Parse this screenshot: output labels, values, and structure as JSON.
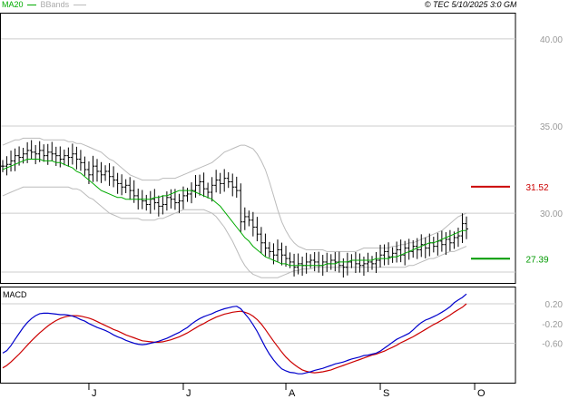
{
  "header": {
    "ma_label": "MA20",
    "bb_label": "BBands",
    "copyright": "© TEC 5/10/2025 3:0 GMT"
  },
  "colors": {
    "ma": "#00aa00",
    "bbands": "#bbbbbb",
    "macd_line": "#0000cc",
    "signal_line": "#cc0000",
    "resistance": "#cc0000",
    "support": "#009900",
    "grid": "#cccccc",
    "price_bar": "#000000"
  },
  "chart_data": [
    {
      "type": "line",
      "panel": "price",
      "ylim": [
        26.0,
        41.5
      ],
      "y_ticks": [
        {
          "value": 40,
          "label": "40.00"
        },
        {
          "value": 35,
          "label": "35.00"
        },
        {
          "value": 30,
          "label": "30.00"
        }
      ],
      "x_labels": [
        "J",
        "J",
        "A",
        "S",
        "O"
      ],
      "x_label_index": [
        21,
        44,
        69,
        92,
        115
      ],
      "levels": [
        {
          "name": "resistance",
          "value": 31.52,
          "label": "31.52"
        },
        {
          "name": "support",
          "value": 27.39,
          "label": "27.39"
        }
      ],
      "price_close": [
        32.7,
        32.8,
        33.0,
        33.3,
        33.2,
        33.4,
        33.6,
        33.5,
        33.4,
        33.6,
        33.3,
        33.5,
        33.4,
        33.3,
        33.1,
        33.3,
        33.2,
        33.4,
        33.1,
        32.9,
        32.5,
        32.2,
        32.7,
        32.4,
        32.2,
        32.4,
        32.1,
        31.9,
        31.7,
        31.5,
        31.6,
        31.3,
        31.0,
        30.8,
        30.7,
        30.5,
        30.8,
        30.6,
        30.4,
        30.5,
        30.9,
        30.8,
        30.6,
        30.7,
        31.0,
        31.1,
        31.3,
        31.6,
        31.8,
        31.4,
        31.2,
        31.6,
        31.9,
        31.7,
        32.0,
        31.8,
        31.5,
        31.3,
        29.5,
        29.8,
        29.6,
        29.2,
        28.8,
        28.3,
        28.0,
        27.8,
        27.6,
        27.9,
        27.6,
        27.4,
        27.2,
        26.9,
        27.1,
        27.0,
        27.2,
        27.3,
        27.2,
        27.0,
        27.2,
        27.1,
        27.3,
        27.2,
        27.0,
        26.9,
        27.2,
        27.3,
        27.1,
        27.0,
        27.1,
        27.2,
        27.1,
        27.3,
        27.6,
        27.8,
        27.5,
        27.7,
        27.9,
        27.6,
        28.0,
        27.8,
        28.1,
        27.9,
        28.2,
        28.0,
        28.3,
        28.1,
        28.4,
        28.2,
        28.5,
        28.3,
        28.6,
        28.7,
        29.4,
        29.1
      ],
      "ma20": [
        32.5,
        32.6,
        32.7,
        32.8,
        32.9,
        33.0,
        33.1,
        33.1,
        33.1,
        33.1,
        33.0,
        33.0,
        33.0,
        32.9,
        32.9,
        32.8,
        32.7,
        32.6,
        32.4,
        32.3,
        32.1,
        31.9,
        31.7,
        31.5,
        31.3,
        31.2,
        31.1,
        31.0,
        30.9,
        30.9,
        30.8,
        30.8,
        30.8,
        30.8,
        30.8,
        30.8,
        30.8,
        30.9,
        30.9,
        31.0,
        31.0,
        31.1,
        31.2,
        31.3,
        31.3,
        31.3,
        31.3,
        31.2,
        31.1,
        31.0,
        30.9,
        30.8,
        30.6,
        30.4,
        30.1,
        29.8,
        29.5,
        29.2,
        28.9,
        28.6,
        28.4,
        28.1,
        27.9,
        27.7,
        27.5,
        27.4,
        27.3,
        27.2,
        27.1,
        27.1,
        27.0,
        27.0,
        27.0,
        27.0,
        27.0,
        27.0,
        27.0,
        27.0,
        27.0,
        27.1,
        27.1,
        27.1,
        27.2,
        27.2,
        27.2,
        27.3,
        27.3,
        27.3,
        27.3,
        27.3,
        27.3,
        27.4,
        27.4,
        27.4,
        27.4,
        27.5,
        27.5,
        27.6,
        27.7,
        27.8,
        27.9,
        28.0,
        28.1,
        28.2,
        28.3,
        28.3,
        28.4,
        28.5,
        28.6,
        28.7,
        28.8,
        28.9,
        29.0,
        29.0
      ],
      "bb_upper": [
        33.9,
        34.0,
        34.1,
        34.2,
        34.2,
        34.3,
        34.3,
        34.3,
        34.3,
        34.3,
        34.2,
        34.2,
        34.2,
        34.2,
        34.2,
        34.2,
        34.1,
        34.1,
        34.0,
        34.0,
        33.9,
        33.8,
        33.7,
        33.6,
        33.5,
        33.3,
        33.1,
        33.0,
        32.8,
        32.6,
        32.4,
        32.2,
        32.1,
        32.0,
        31.9,
        31.9,
        31.9,
        31.9,
        31.9,
        32.0,
        32.0,
        32.0,
        32.0,
        32.1,
        32.2,
        32.3,
        32.4,
        32.5,
        32.6,
        32.7,
        32.8,
        32.9,
        33.1,
        33.3,
        33.5,
        33.6,
        33.7,
        33.8,
        33.9,
        33.9,
        33.8,
        33.7,
        33.4,
        33.0,
        32.5,
        31.8,
        31.0,
        30.2,
        29.5,
        29.0,
        28.6,
        28.3,
        28.1,
        28.0,
        27.9,
        27.9,
        27.9,
        27.9,
        27.9,
        27.8,
        27.8,
        27.8,
        27.8,
        27.8,
        27.8,
        27.8,
        27.8,
        27.9,
        28.0,
        28.0,
        28.0,
        28.0,
        28.0,
        28.0,
        28.0,
        28.1,
        28.1,
        28.2,
        28.2,
        28.3,
        28.3,
        28.4,
        28.5,
        28.6,
        28.7,
        28.8,
        28.9,
        29.0,
        29.2,
        29.4,
        29.6,
        29.8,
        29.9,
        30.0
      ],
      "bb_lower": [
        31.0,
        31.1,
        31.2,
        31.3,
        31.4,
        31.5,
        31.5,
        31.5,
        31.5,
        31.5,
        31.5,
        31.5,
        31.5,
        31.5,
        31.5,
        31.5,
        31.5,
        31.4,
        31.4,
        31.3,
        31.1,
        30.9,
        30.8,
        30.6,
        30.4,
        30.2,
        30.0,
        29.9,
        29.8,
        29.7,
        29.7,
        29.7,
        29.7,
        29.7,
        29.6,
        29.6,
        29.6,
        29.6,
        29.7,
        29.7,
        29.8,
        29.9,
        30.0,
        30.1,
        30.2,
        30.2,
        30.2,
        30.2,
        30.2,
        30.2,
        30.1,
        30.0,
        29.8,
        29.5,
        29.2,
        28.8,
        28.4,
        27.9,
        27.4,
        27.0,
        26.7,
        26.5,
        26.4,
        26.3,
        26.3,
        26.3,
        26.3,
        26.3,
        26.4,
        26.5,
        26.6,
        26.7,
        26.7,
        26.8,
        26.8,
        26.8,
        26.9,
        26.9,
        26.9,
        26.9,
        26.9,
        26.9,
        26.9,
        26.9,
        26.9,
        26.9,
        26.9,
        26.9,
        26.9,
        26.9,
        26.9,
        26.9,
        26.9,
        26.9,
        26.9,
        26.9,
        26.9,
        26.9,
        26.9,
        27.0,
        27.0,
        27.1,
        27.2,
        27.3,
        27.4,
        27.4,
        27.5,
        27.6,
        27.7,
        27.8,
        27.8,
        27.9,
        28.0,
        28.1
      ]
    },
    {
      "type": "line",
      "panel": "macd",
      "title": "MACD",
      "ylim": [
        -1.4,
        0.55
      ],
      "y_ticks": [
        {
          "value": 0.2,
          "label": "0.20"
        },
        {
          "value": -0.2,
          "label": "-0.20"
        },
        {
          "value": -0.6,
          "label": "-0.60"
        }
      ],
      "series": [
        {
          "key": "macd",
          "values": [
            -0.8,
            -0.75,
            -0.65,
            -0.52,
            -0.4,
            -0.28,
            -0.18,
            -0.1,
            -0.04,
            0.0,
            0.01,
            0.01,
            0.0,
            -0.01,
            -0.02,
            -0.02,
            -0.03,
            -0.05,
            -0.08,
            -0.12,
            -0.15,
            -0.2,
            -0.24,
            -0.28,
            -0.31,
            -0.34,
            -0.38,
            -0.43,
            -0.47,
            -0.5,
            -0.54,
            -0.57,
            -0.6,
            -0.62,
            -0.63,
            -0.62,
            -0.6,
            -0.58,
            -0.56,
            -0.53,
            -0.5,
            -0.46,
            -0.42,
            -0.38,
            -0.33,
            -0.28,
            -0.21,
            -0.15,
            -0.1,
            -0.06,
            -0.03,
            0.0,
            0.04,
            0.07,
            0.1,
            0.12,
            0.14,
            0.15,
            0.1,
            0.0,
            -0.1,
            -0.22,
            -0.36,
            -0.52,
            -0.68,
            -0.82,
            -0.94,
            -1.04,
            -1.12,
            -1.16,
            -1.19,
            -1.2,
            -1.22,
            -1.22,
            -1.2,
            -1.18,
            -1.15,
            -1.13,
            -1.11,
            -1.08,
            -1.05,
            -1.02,
            -1.0,
            -0.98,
            -0.95,
            -0.92,
            -0.9,
            -0.88,
            -0.85,
            -0.84,
            -0.82,
            -0.8,
            -0.76,
            -0.7,
            -0.64,
            -0.58,
            -0.52,
            -0.48,
            -0.44,
            -0.4,
            -0.33,
            -0.25,
            -0.18,
            -0.13,
            -0.1,
            -0.06,
            -0.02,
            0.03,
            0.08,
            0.14,
            0.22,
            0.28,
            0.33,
            0.4
          ]
        },
        {
          "key": "signal",
          "values": [
            -1.1,
            -1.05,
            -0.98,
            -0.9,
            -0.82,
            -0.73,
            -0.64,
            -0.55,
            -0.47,
            -0.39,
            -0.32,
            -0.25,
            -0.19,
            -0.14,
            -0.1,
            -0.07,
            -0.05,
            -0.04,
            -0.04,
            -0.05,
            -0.07,
            -0.09,
            -0.12,
            -0.16,
            -0.2,
            -0.24,
            -0.28,
            -0.32,
            -0.35,
            -0.39,
            -0.43,
            -0.46,
            -0.49,
            -0.52,
            -0.55,
            -0.56,
            -0.57,
            -0.58,
            -0.58,
            -0.57,
            -0.55,
            -0.53,
            -0.5,
            -0.47,
            -0.43,
            -0.39,
            -0.34,
            -0.29,
            -0.24,
            -0.2,
            -0.15,
            -0.11,
            -0.07,
            -0.04,
            -0.01,
            0.01,
            0.03,
            0.04,
            0.05,
            0.03,
            0.0,
            -0.05,
            -0.12,
            -0.21,
            -0.32,
            -0.44,
            -0.56,
            -0.67,
            -0.78,
            -0.88,
            -0.96,
            -1.03,
            -1.09,
            -1.14,
            -1.17,
            -1.19,
            -1.2,
            -1.19,
            -1.18,
            -1.16,
            -1.14,
            -1.11,
            -1.08,
            -1.05,
            -1.02,
            -0.99,
            -0.96,
            -0.93,
            -0.9,
            -0.87,
            -0.84,
            -0.82,
            -0.79,
            -0.76,
            -0.72,
            -0.68,
            -0.64,
            -0.59,
            -0.55,
            -0.51,
            -0.47,
            -0.42,
            -0.37,
            -0.32,
            -0.27,
            -0.22,
            -0.18,
            -0.13,
            -0.08,
            -0.03,
            0.03,
            0.08,
            0.13,
            0.2
          ]
        }
      ]
    }
  ]
}
